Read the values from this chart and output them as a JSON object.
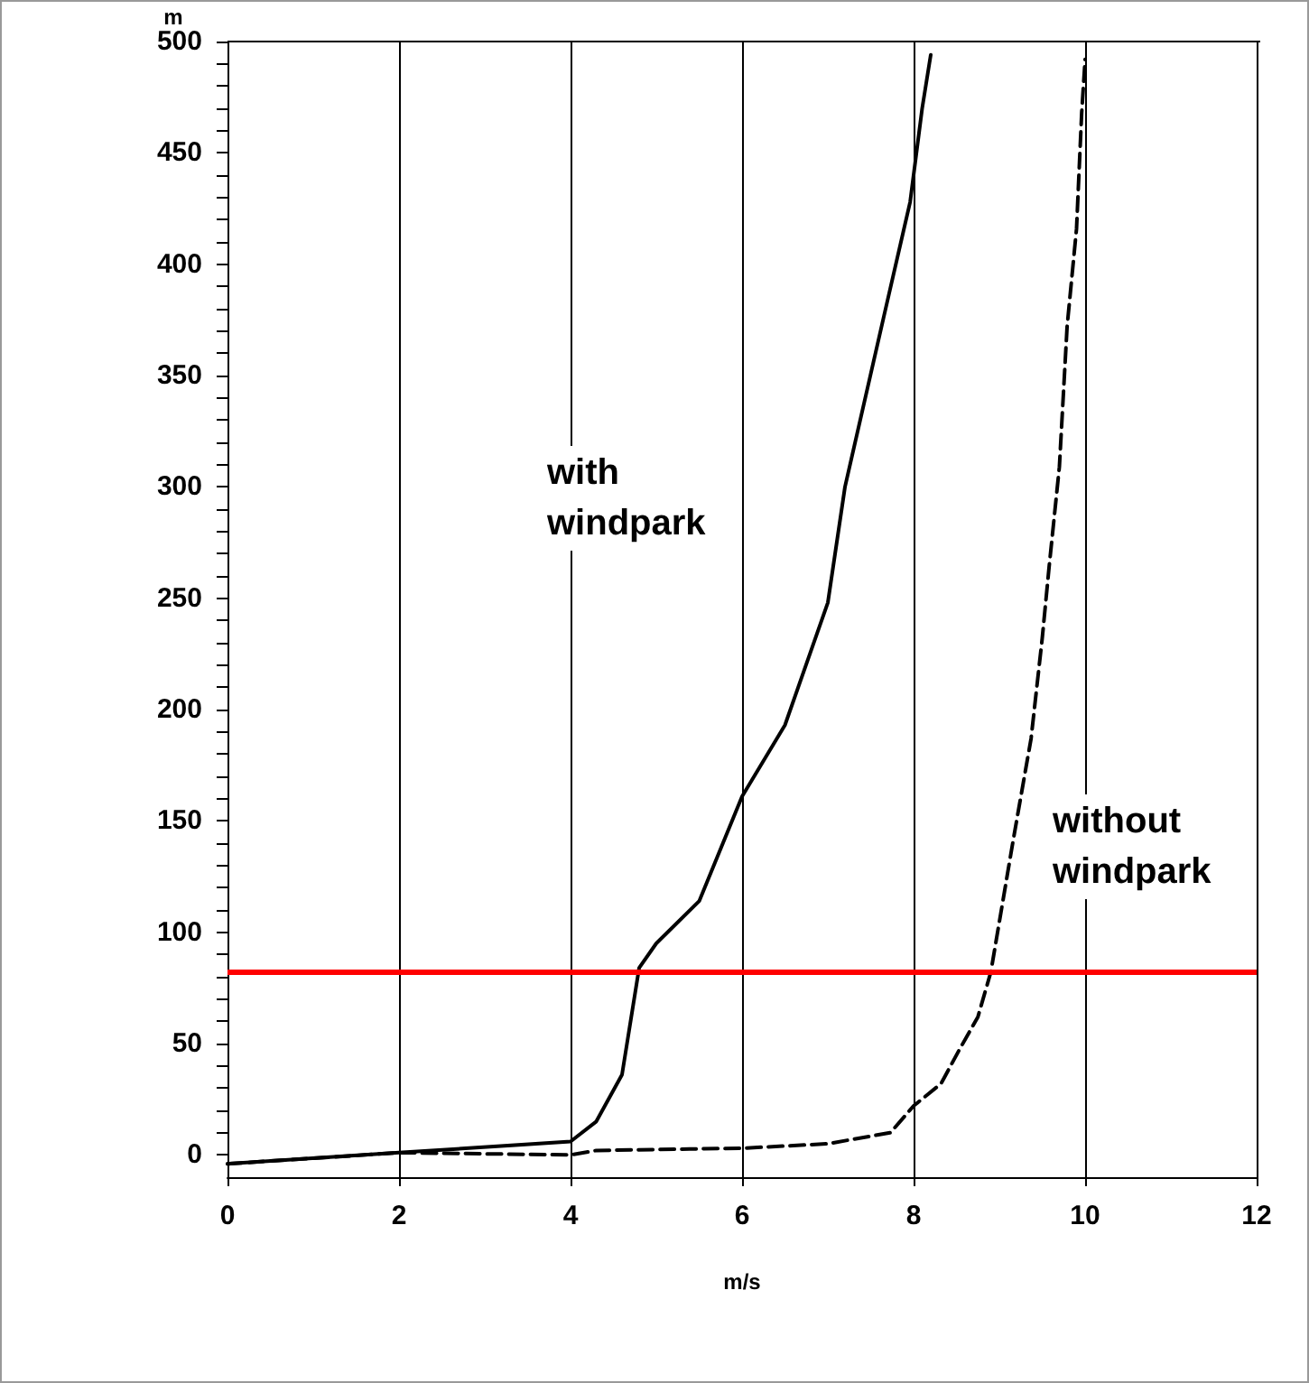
{
  "chart_data": {
    "type": "line",
    "xlabel": "m/s",
    "ylabel": "m",
    "xlim": [
      0,
      12
    ],
    "xticks": [
      0,
      2,
      4,
      6,
      8,
      10,
      12
    ],
    "ylim": [
      -10,
      500
    ],
    "yticks": [
      0,
      {
        "value": 10,
        "label": null
      },
      {
        "value": 20,
        "label": null
      },
      {
        "value": 30,
        "label": null
      },
      {
        "value": 40,
        "label": null
      },
      50,
      {
        "value": 60,
        "label": null
      },
      {
        "value": 70,
        "label": null
      },
      {
        "value": 80,
        "label": null
      },
      {
        "value": 90,
        "label": null
      },
      100,
      {
        "value": 110,
        "label": null
      },
      {
        "value": 120,
        "label": null
      },
      {
        "value": 130,
        "label": null
      },
      {
        "value": 140,
        "label": null
      },
      150,
      {
        "value": 160,
        "label": null
      },
      {
        "value": 170,
        "label": null
      },
      {
        "value": 180,
        "label": null
      },
      {
        "value": 190,
        "label": null
      },
      200,
      {
        "value": 210,
        "label": null
      },
      {
        "value": 220,
        "label": null
      },
      {
        "value": 230,
        "label": null
      },
      {
        "value": 240,
        "label": null
      },
      250,
      {
        "value": 260,
        "label": null
      },
      {
        "value": 270,
        "label": null
      },
      {
        "value": 280,
        "label": null
      },
      {
        "value": 290,
        "label": null
      },
      300,
      {
        "value": 310,
        "label": null
      },
      {
        "value": 320,
        "label": null
      },
      {
        "value": 330,
        "label": null
      },
      {
        "value": 340,
        "label": null
      },
      350,
      {
        "value": 360,
        "label": null
      },
      {
        "value": 370,
        "label": null
      },
      {
        "value": 380,
        "label": null
      },
      {
        "value": 390,
        "label": null
      },
      400,
      {
        "value": 410,
        "label": null
      },
      {
        "value": 420,
        "label": null
      },
      {
        "value": 430,
        "label": null
      },
      {
        "value": 440,
        "label": null
      },
      450,
      {
        "value": 460,
        "label": null
      },
      {
        "value": 470,
        "label": null
      },
      {
        "value": 480,
        "label": null
      },
      {
        "value": 490,
        "label": null
      },
      500
    ],
    "grid": "x",
    "marker": "none",
    "series": [
      {
        "color": "#000000",
        "line_style": "solid",
        "x": [
          0,
          2,
          4,
          4.3,
          4.6,
          4.8,
          5.0,
          5.5,
          6.0,
          6.5,
          7.0,
          7.2,
          7.65,
          7.96,
          8.1,
          8.2
        ],
        "values": [
          -4,
          1,
          6,
          15,
          36,
          84,
          95,
          114,
          161,
          193,
          248,
          300,
          376,
          428,
          470,
          494
        ]
      },
      {
        "color": "#000000",
        "line_style": "dashed",
        "x": [
          0,
          2,
          4,
          4.3,
          6,
          7,
          7.73,
          8.0,
          8.32,
          8.53,
          8.75,
          8.9,
          9.16,
          9.37,
          9.5,
          9.58,
          9.7,
          9.79,
          9.9,
          9.96,
          10.0
        ],
        "values": [
          -4,
          1,
          0,
          2,
          3,
          5,
          10,
          22,
          32,
          47,
          62,
          82,
          141,
          187,
          232,
          264,
          309,
          372,
          416,
          468,
          492
        ]
      }
    ],
    "ref_lines": [
      {
        "axis": "y",
        "value": 82,
        "color": "#ff0000",
        "line_style": "solid"
      }
    ],
    "annotations": [
      "with\nwindpark",
      "without\nwindpark"
    ]
  }
}
